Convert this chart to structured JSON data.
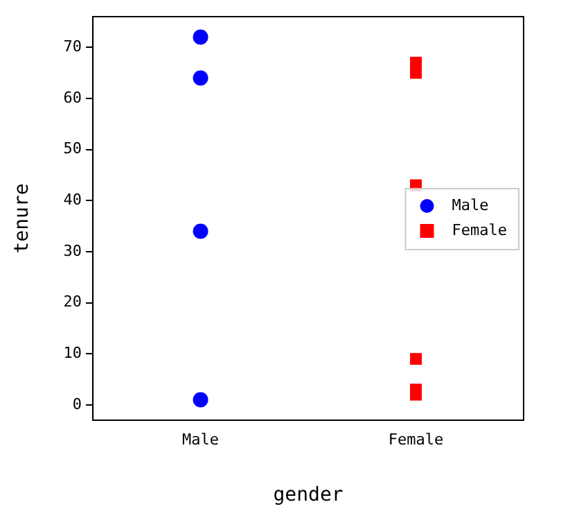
{
  "chart_data": {
    "type": "scatter",
    "xlabel": "gender",
    "ylabel": "tenure",
    "categories": [
      "Male",
      "Female"
    ],
    "series": [
      {
        "name": "Male",
        "color": "#0000ff",
        "marker": "circle",
        "x": [
          "Male",
          "Male",
          "Male",
          "Male"
        ],
        "values": [
          72,
          64,
          34,
          1
        ]
      },
      {
        "name": "Female",
        "color": "#ff0000",
        "marker": "square",
        "x": [
          "Female",
          "Female",
          "Female",
          "Female",
          "Female",
          "Female"
        ],
        "values": [
          67,
          65,
          43,
          9,
          3,
          2
        ]
      }
    ],
    "ylim": [
      -3,
      76
    ],
    "yticks": [
      0,
      10,
      20,
      30,
      40,
      50,
      60,
      70
    ],
    "grid": false,
    "legend": "right"
  }
}
